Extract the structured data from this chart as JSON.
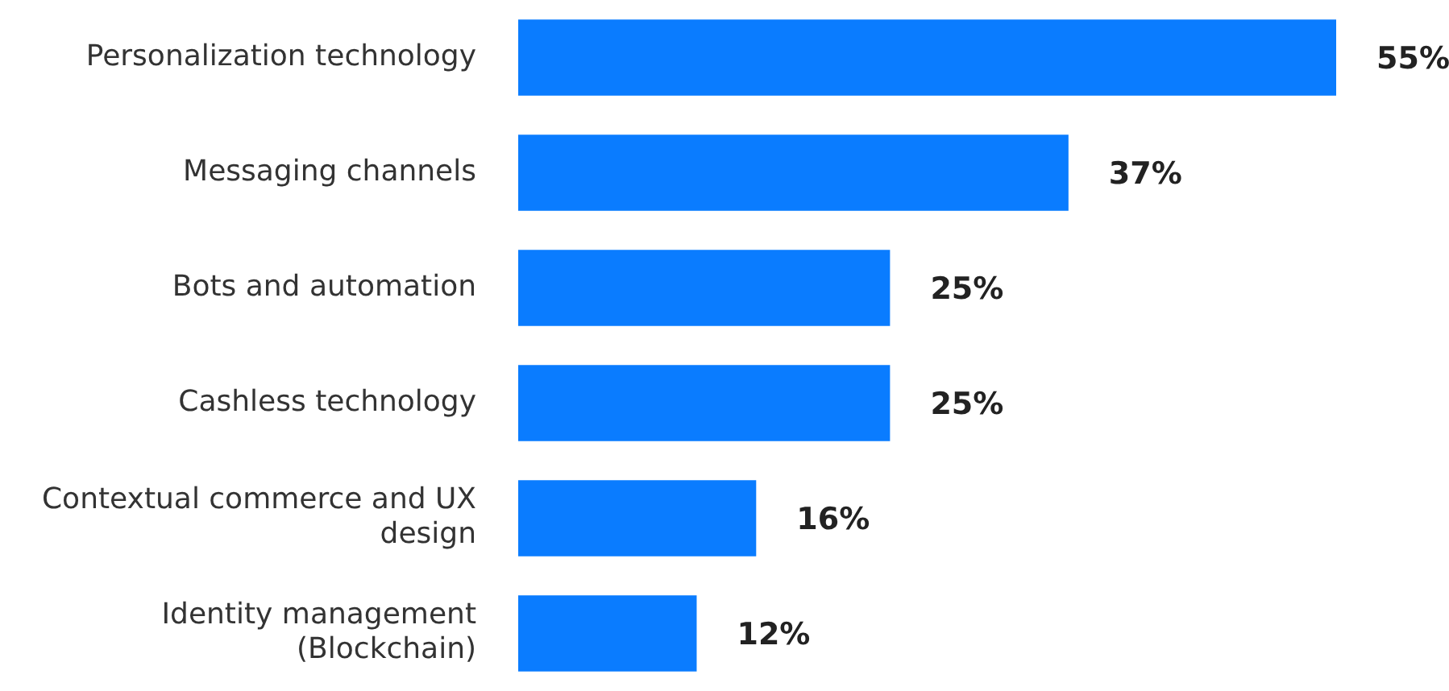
{
  "chart_data": {
    "type": "bar",
    "orientation": "horizontal",
    "categories": [
      "Personalization technology",
      "Messaging channels",
      "Bots and automation",
      "Cashless technology",
      "Contextual commerce and UX design",
      "Identity management (Blockchain)"
    ],
    "values": [
      55,
      37,
      25,
      25,
      16,
      12
    ],
    "value_labels": [
      "55%",
      "37%",
      "25%",
      "25%",
      "16%",
      "12%"
    ],
    "color": "#0a7cff",
    "grid": false,
    "legend": false
  }
}
